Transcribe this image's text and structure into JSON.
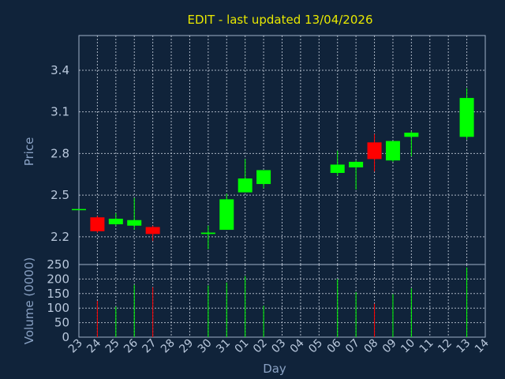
{
  "chart_data": [
    {
      "type": "candlestick",
      "title": "EDIT - last updated 13/04/2026",
      "xlabel": "",
      "ylabel": "Price",
      "ylim": [
        2.0,
        3.65
      ],
      "yticks": [
        2.2,
        2.5,
        2.8,
        3.1,
        3.4
      ],
      "grid": true,
      "categories": [
        "23",
        "24",
        "25",
        "26",
        "27",
        "28",
        "29",
        "30",
        "31",
        "01",
        "02",
        "03",
        "04",
        "05",
        "06",
        "07",
        "08",
        "09",
        "10",
        "11",
        "12",
        "13",
        "14"
      ],
      "candles": [
        {
          "x": "23",
          "open": 2.4,
          "close": 2.4,
          "high": 2.4,
          "low": 2.4
        },
        {
          "x": "24",
          "open": 2.34,
          "close": 2.24,
          "high": 2.35,
          "low": 2.23
        },
        {
          "x": "25",
          "open": 2.29,
          "close": 2.33,
          "high": 2.37,
          "low": 2.28
        },
        {
          "x": "26",
          "open": 2.28,
          "close": 2.32,
          "high": 2.48,
          "low": 2.25
        },
        {
          "x": "27",
          "open": 2.27,
          "close": 2.22,
          "high": 2.28,
          "low": 2.17
        },
        {
          "x": "30",
          "open": 2.22,
          "close": 2.23,
          "high": 2.28,
          "low": 2.11
        },
        {
          "x": "31",
          "open": 2.25,
          "close": 2.47,
          "high": 2.51,
          "low": 2.25
        },
        {
          "x": "01",
          "open": 2.52,
          "close": 2.62,
          "high": 2.76,
          "low": 2.52
        },
        {
          "x": "02",
          "open": 2.58,
          "close": 2.68,
          "high": 2.68,
          "low": 2.55
        },
        {
          "x": "06",
          "open": 2.66,
          "close": 2.72,
          "high": 2.82,
          "low": 2.64
        },
        {
          "x": "07",
          "open": 2.7,
          "close": 2.74,
          "high": 2.75,
          "low": 2.54
        },
        {
          "x": "08",
          "open": 2.88,
          "close": 2.76,
          "high": 2.94,
          "low": 2.67
        },
        {
          "x": "09",
          "open": 2.75,
          "close": 2.89,
          "high": 2.89,
          "low": 2.74
        },
        {
          "x": "10",
          "open": 2.92,
          "close": 2.95,
          "high": 2.96,
          "low": 2.78
        },
        {
          "x": "13",
          "open": 2.92,
          "close": 3.2,
          "high": 3.27,
          "low": 2.9
        }
      ]
    },
    {
      "type": "bar",
      "xlabel": "Day",
      "ylabel": "Volume (0000)",
      "ylim": [
        0,
        250
      ],
      "yticks": [
        0,
        50,
        100,
        150,
        200,
        250
      ],
      "grid": true,
      "categories": [
        "23",
        "24",
        "25",
        "26",
        "27",
        "28",
        "29",
        "30",
        "31",
        "01",
        "02",
        "03",
        "04",
        "05",
        "06",
        "07",
        "08",
        "09",
        "10",
        "11",
        "12",
        "13",
        "14"
      ],
      "bars": [
        {
          "x": "24",
          "value": 125,
          "direction": "down"
        },
        {
          "x": "25",
          "value": 105,
          "direction": "up"
        },
        {
          "x": "26",
          "value": 180,
          "direction": "up"
        },
        {
          "x": "27",
          "value": 172,
          "direction": "down"
        },
        {
          "x": "30",
          "value": 178,
          "direction": "up"
        },
        {
          "x": "31",
          "value": 188,
          "direction": "up"
        },
        {
          "x": "01",
          "value": 210,
          "direction": "up"
        },
        {
          "x": "02",
          "value": 108,
          "direction": "up"
        },
        {
          "x": "06",
          "value": 200,
          "direction": "up"
        },
        {
          "x": "07",
          "value": 155,
          "direction": "up"
        },
        {
          "x": "08",
          "value": 115,
          "direction": "down"
        },
        {
          "x": "09",
          "value": 148,
          "direction": "up"
        },
        {
          "x": "10",
          "value": 168,
          "direction": "up"
        },
        {
          "x": "13",
          "value": 240,
          "direction": "up"
        }
      ]
    }
  ],
  "colors": {
    "background": "#10233a",
    "up": "#00ff00",
    "down": "#ff0000",
    "grid": "#d0d8e4",
    "title": "#e8e800",
    "frame": "#9fb0c8"
  }
}
